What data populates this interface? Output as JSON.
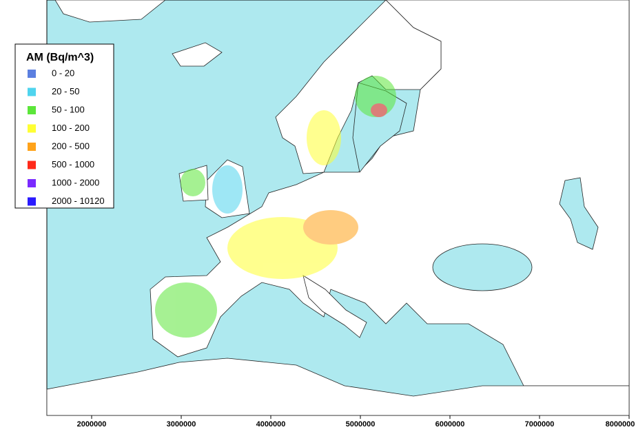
{
  "legend": {
    "title": "AM (Bq/m^3)",
    "items": [
      {
        "label": "0 - 20",
        "color": "#5b7fe0"
      },
      {
        "label": "20 - 50",
        "color": "#4fd4ee"
      },
      {
        "label": "50 - 100",
        "color": "#5ce63a"
      },
      {
        "label": "100 - 200",
        "color": "#ffff33"
      },
      {
        "label": "200 - 500",
        "color": "#ffa31a"
      },
      {
        "label": "500 - 1000",
        "color": "#ff2a1a"
      },
      {
        "label": "1000 - 2000",
        "color": "#7a2aff"
      },
      {
        "label": "2000 - 10120",
        "color": "#2a1aff"
      }
    ]
  },
  "x_axis": {
    "xlim": [
      1500000,
      8000000
    ],
    "ticks": [
      2000000,
      3000000,
      4000000,
      5000000,
      6000000,
      7000000,
      8000000
    ]
  }
}
